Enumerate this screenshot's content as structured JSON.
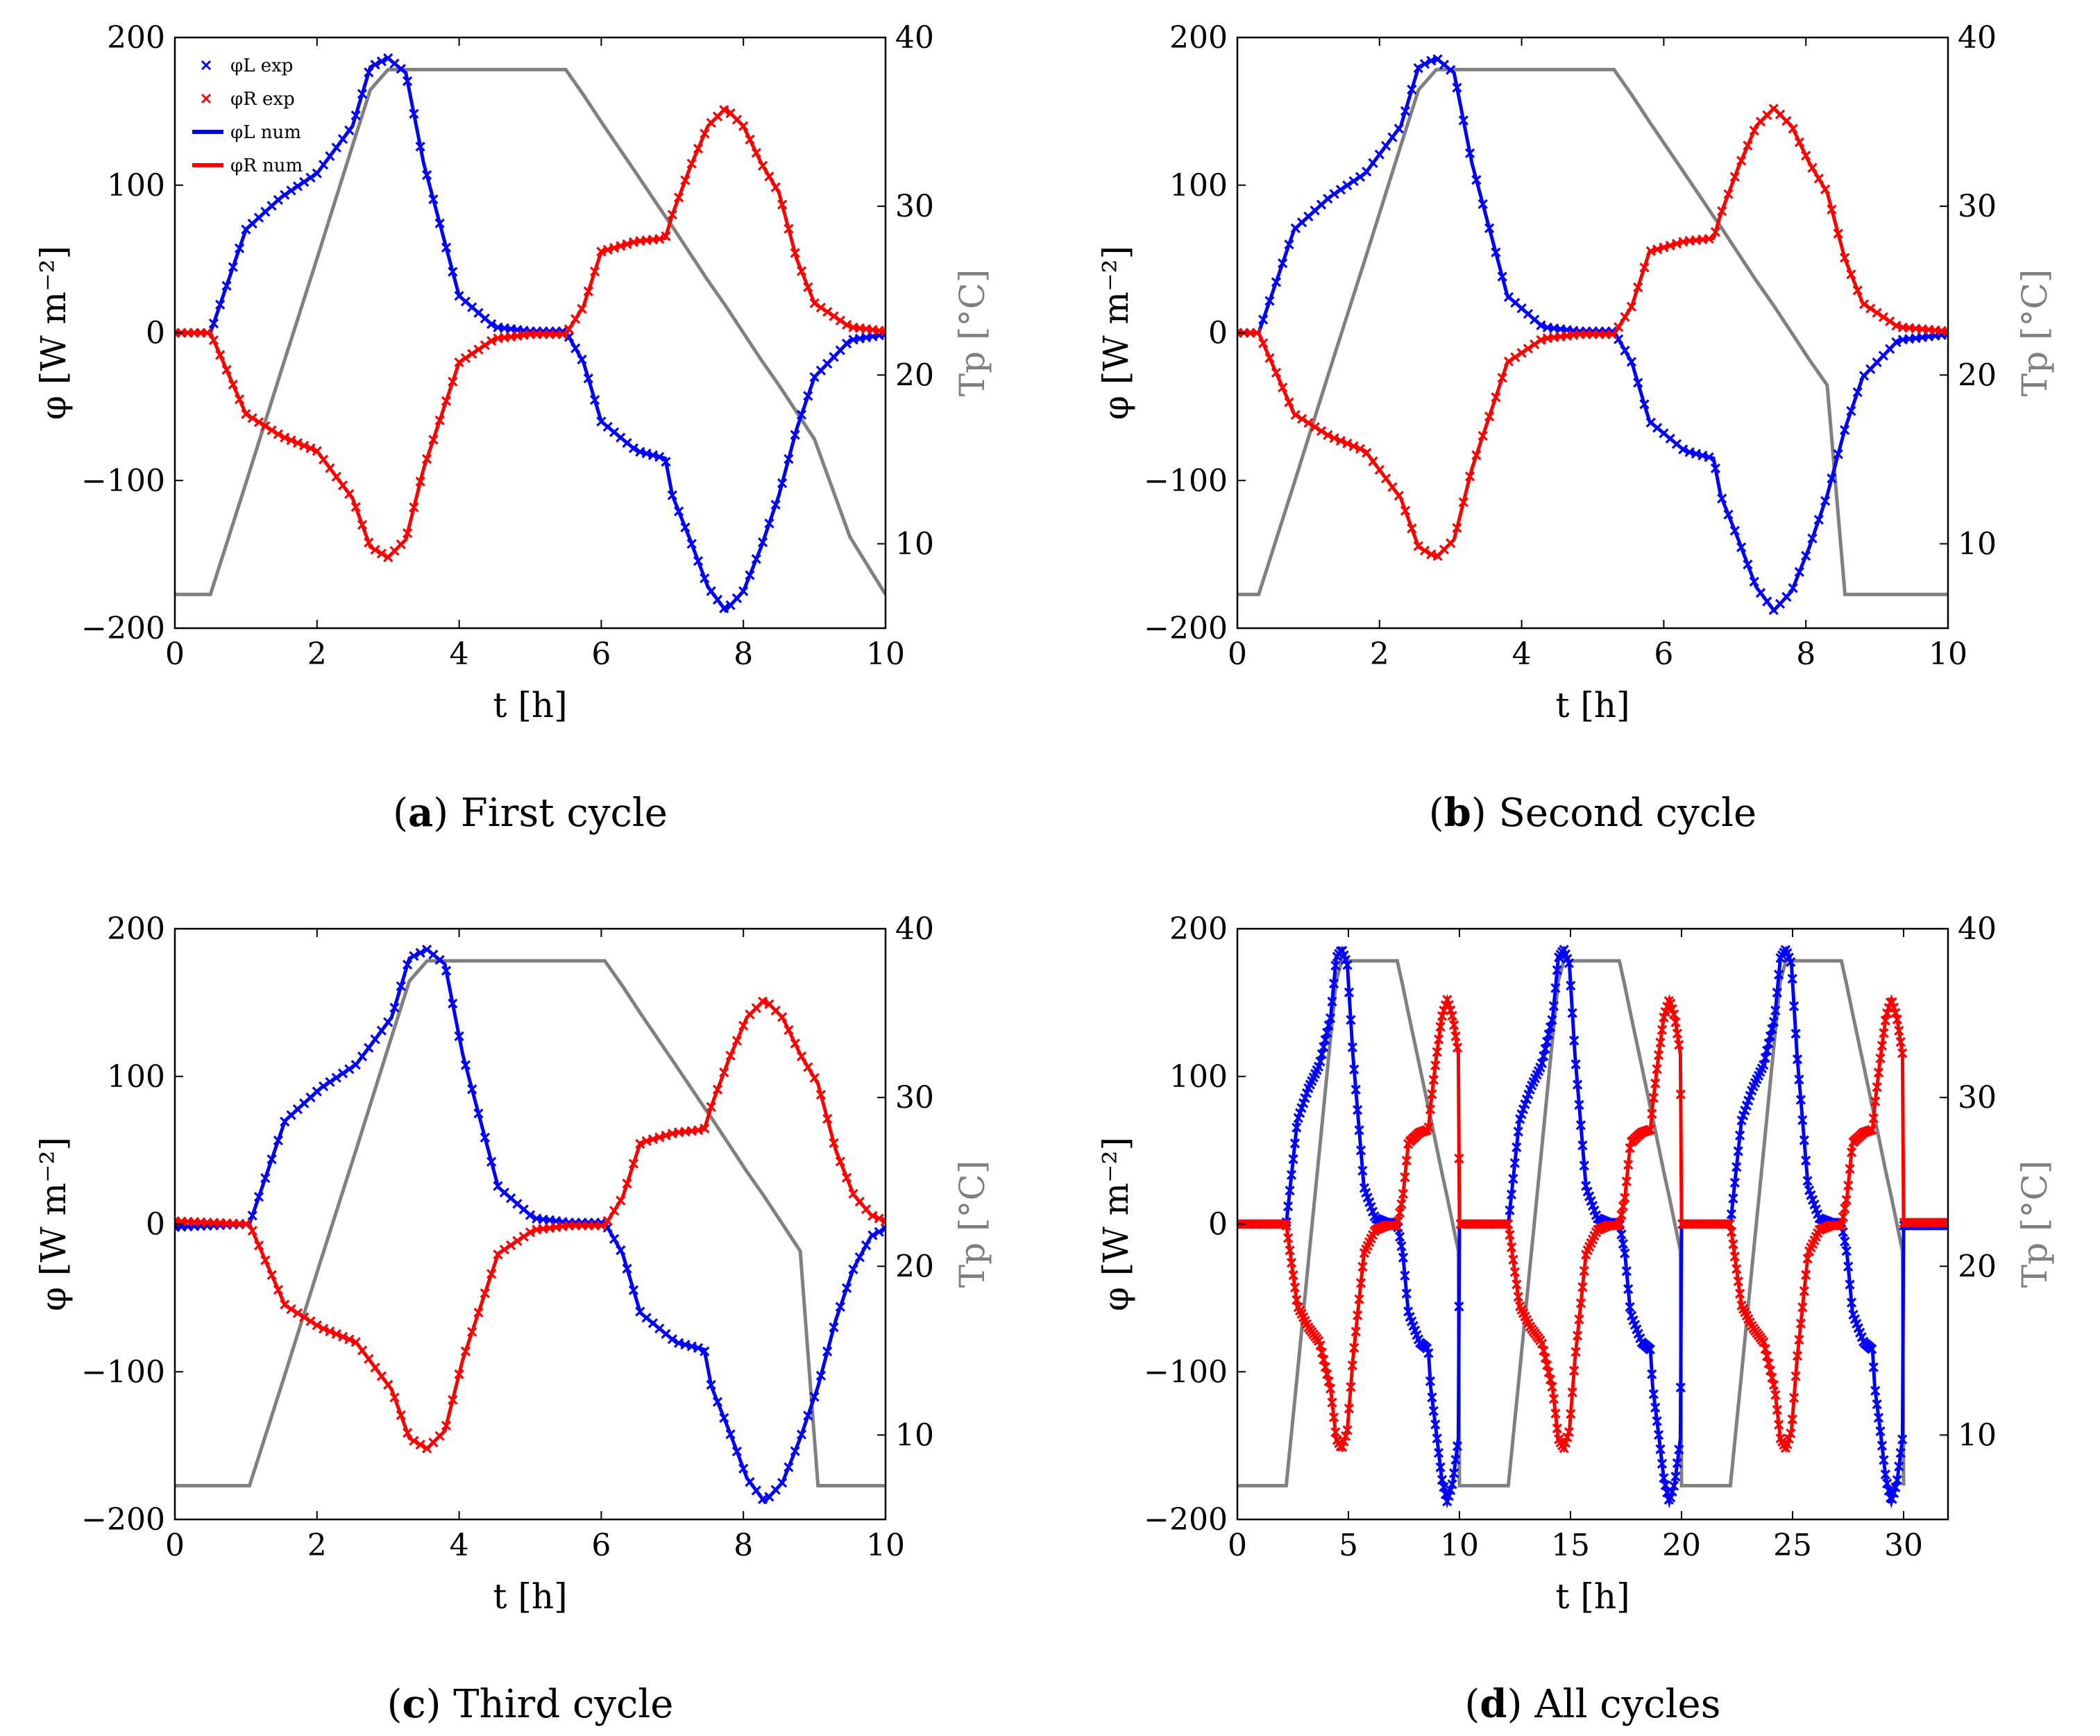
{
  "figure": {
    "captions": [
      {
        "letter": "a",
        "text": "First cycle"
      },
      {
        "letter": "b",
        "text": "Second cycle"
      },
      {
        "letter": "c",
        "text": "Third cycle"
      },
      {
        "letter": "d",
        "text": "All cycles"
      }
    ]
  },
  "colors": {
    "left": "#0000ff",
    "right": "#ff0000",
    "temperature": "#808080",
    "axis": "#000000"
  },
  "chart_data": [
    {
      "type": "line",
      "title": "First cycle",
      "xlabel": "t [h]",
      "ylabel": "φ [W m⁻²]",
      "y2label": "Tp [°C]",
      "xlim": [
        0,
        10
      ],
      "ylim": [
        -200,
        200
      ],
      "y2lim": [
        5,
        40
      ],
      "xticks": [
        "0",
        "2",
        "4",
        "6",
        "8",
        "10"
      ],
      "yticks": [
        "−200",
        "−100",
        "0",
        "100",
        "200"
      ],
      "y2ticks": [
        "10",
        "20",
        "30",
        "40"
      ],
      "legend": [
        "φL exp",
        "φR exp",
        "φL num",
        "φR num"
      ],
      "legend_position": "top-left",
      "x": [
        0,
        0.5,
        1.0,
        1.5,
        2.0,
        2.5,
        2.75,
        3.0,
        3.25,
        3.5,
        4.0,
        4.5,
        5.0,
        5.5,
        5.75,
        6.0,
        6.5,
        6.9,
        7.0,
        7.25,
        7.5,
        7.75,
        8.0,
        8.25,
        8.5,
        8.75,
        9.0,
        9.5,
        10.0
      ],
      "series": [
        {
          "name": "φL",
          "values": [
            0,
            0,
            70,
            92,
            108,
            140,
            180,
            186,
            176,
            115,
            25,
            4,
            1,
            1,
            -20,
            -60,
            -80,
            -85,
            -110,
            -140,
            -172,
            -188,
            -175,
            -145,
            -110,
            -65,
            -30,
            -5,
            -1
          ]
        },
        {
          "name": "φR",
          "values": [
            0,
            0,
            -55,
            -70,
            -80,
            -112,
            -145,
            -152,
            -140,
            -92,
            -20,
            -4,
            -1,
            -1,
            18,
            55,
            62,
            64,
            80,
            112,
            140,
            152,
            140,
            115,
            95,
            50,
            20,
            4,
            1
          ]
        },
        {
          "name": "Tp",
          "values": [
            7,
            7,
            13.6,
            20.3,
            26.9,
            33.6,
            36.9,
            38.1,
            38.1,
            38.1,
            38.1,
            38.1,
            38.1,
            38.1,
            36.6,
            35.0,
            31.9,
            29.4,
            28.8,
            27.2,
            25.6,
            24.1,
            22.5,
            20.9,
            19.4,
            17.8,
            16.2,
            10.4,
            7
          ]
        }
      ]
    },
    {
      "type": "line",
      "title": "Second cycle",
      "xlabel": "t [h]",
      "ylabel": "φ [W m⁻²]",
      "y2label": "Tp [°C]",
      "xlim": [
        0,
        10
      ],
      "ylim": [
        -200,
        200
      ],
      "y2lim": [
        5,
        40
      ],
      "xticks": [
        "0",
        "2",
        "4",
        "6",
        "8",
        "10"
      ],
      "yticks": [
        "−200",
        "−100",
        "0",
        "100",
        "200"
      ],
      "y2ticks": [
        "10",
        "20",
        "30",
        "40"
      ],
      "x": [
        0,
        0.3,
        0.8,
        1.3,
        1.8,
        2.3,
        2.55,
        2.8,
        3.05,
        3.3,
        3.8,
        4.3,
        4.8,
        5.3,
        5.55,
        5.8,
        6.3,
        6.7,
        6.8,
        7.05,
        7.3,
        7.55,
        7.8,
        8.05,
        8.3,
        8.55,
        8.8,
        9.3,
        10.0
      ],
      "series": [
        {
          "name": "φL",
          "values": [
            0,
            0,
            70,
            92,
            108,
            140,
            180,
            186,
            176,
            115,
            25,
            4,
            1,
            1,
            -20,
            -60,
            -80,
            -85,
            -110,
            -140,
            -172,
            -188,
            -175,
            -145,
            -110,
            -65,
            -30,
            -5,
            -1
          ]
        },
        {
          "name": "φR",
          "values": [
            0,
            0,
            -55,
            -70,
            -80,
            -112,
            -145,
            -152,
            -140,
            -92,
            -20,
            -4,
            -1,
            -1,
            18,
            55,
            62,
            64,
            80,
            112,
            140,
            152,
            140,
            115,
            95,
            50,
            20,
            4,
            1
          ]
        },
        {
          "name": "Tp",
          "values": [
            7,
            7,
            13.6,
            20.3,
            26.9,
            33.6,
            36.9,
            38.1,
            38.1,
            38.1,
            38.1,
            38.1,
            38.1,
            38.1,
            36.6,
            35.0,
            31.9,
            29.4,
            28.8,
            27.2,
            25.6,
            24.1,
            22.5,
            20.9,
            19.4,
            7,
            7,
            7,
            7
          ]
        }
      ]
    },
    {
      "type": "line",
      "title": "Third cycle",
      "xlabel": "t [h]",
      "ylabel": "φ [W m⁻²]",
      "y2label": "Tp [°C]",
      "xlim": [
        0,
        10
      ],
      "ylim": [
        -200,
        200
      ],
      "y2lim": [
        5,
        40
      ],
      "xticks": [
        "0",
        "2",
        "4",
        "6",
        "8",
        "10"
      ],
      "yticks": [
        "−200",
        "−100",
        "0",
        "100",
        "200"
      ],
      "y2ticks": [
        "10",
        "20",
        "30",
        "40"
      ],
      "x": [
        0,
        1.05,
        1.55,
        2.05,
        2.55,
        3.05,
        3.3,
        3.55,
        3.8,
        4.05,
        4.55,
        5.05,
        5.55,
        6.05,
        6.3,
        6.55,
        7.05,
        7.45,
        7.55,
        7.8,
        8.05,
        8.3,
        8.55,
        8.8,
        9.05,
        9.3,
        9.55,
        9.8,
        10.0
      ],
      "series": [
        {
          "name": "φL",
          "values": [
            -2,
            0,
            70,
            92,
            108,
            140,
            180,
            186,
            176,
            115,
            25,
            4,
            1,
            1,
            -20,
            -60,
            -80,
            -85,
            -110,
            -140,
            -172,
            -188,
            -175,
            -145,
            -110,
            -65,
            -30,
            -8,
            -3
          ]
        },
        {
          "name": "φR",
          "values": [
            2,
            0,
            -55,
            -70,
            -80,
            -112,
            -145,
            -152,
            -140,
            -92,
            -20,
            -4,
            -1,
            -1,
            18,
            55,
            62,
            64,
            80,
            112,
            140,
            152,
            140,
            115,
            95,
            50,
            20,
            6,
            2
          ]
        },
        {
          "name": "Tp",
          "values": [
            7,
            7,
            13.6,
            20.3,
            26.9,
            33.6,
            36.9,
            38.1,
            38.1,
            38.1,
            38.1,
            38.1,
            38.1,
            38.1,
            36.6,
            35.0,
            31.9,
            29.4,
            28.8,
            27.2,
            25.6,
            24.1,
            22.5,
            20.9,
            7,
            7,
            7,
            7,
            7
          ]
        }
      ]
    },
    {
      "type": "line",
      "title": "All cycles",
      "xlabel": "t [h]",
      "ylabel": "φ [W m⁻²]",
      "y2label": "Tp [°C]",
      "xlim": [
        0,
        32
      ],
      "ylim": [
        -200,
        200
      ],
      "y2lim": [
        5,
        40
      ],
      "xticks": [
        "0",
        "5",
        "10",
        "15",
        "20",
        "25",
        "30"
      ],
      "yticks": [
        "−200",
        "−100",
        "0",
        "100",
        "200"
      ],
      "y2ticks": [
        "10",
        "20",
        "30",
        "40"
      ],
      "cycle_starts": [
        0,
        10,
        20
      ],
      "cycle_x": [
        0,
        2.2,
        2.7,
        3.2,
        3.7,
        4.2,
        4.45,
        4.7,
        4.95,
        5.2,
        5.7,
        6.2,
        6.7,
        7.2,
        7.45,
        7.7,
        8.2,
        8.6,
        8.7,
        8.95,
        9.2,
        9.45,
        9.7,
        9.95,
        10.0
      ],
      "series": [
        {
          "name": "φL",
          "values": [
            0,
            0,
            70,
            92,
            108,
            140,
            180,
            186,
            176,
            115,
            25,
            4,
            1,
            1,
            -20,
            -60,
            -80,
            -85,
            -110,
            -140,
            -172,
            -188,
            -175,
            -145,
            -1
          ]
        },
        {
          "name": "φR",
          "values": [
            0,
            0,
            -55,
            -70,
            -80,
            -112,
            -145,
            -152,
            -140,
            -92,
            -20,
            -4,
            -1,
            -1,
            18,
            55,
            62,
            64,
            80,
            112,
            140,
            152,
            140,
            115,
            1
          ]
        },
        {
          "name": "Tp",
          "values": [
            7,
            7,
            13.6,
            20.3,
            26.9,
            33.6,
            36.9,
            38.1,
            38.1,
            38.1,
            38.1,
            38.1,
            38.1,
            38.1,
            36.6,
            35.0,
            31.9,
            29.4,
            28.8,
            27.2,
            25.6,
            24.1,
            22.5,
            20.9,
            7
          ]
        }
      ]
    }
  ]
}
